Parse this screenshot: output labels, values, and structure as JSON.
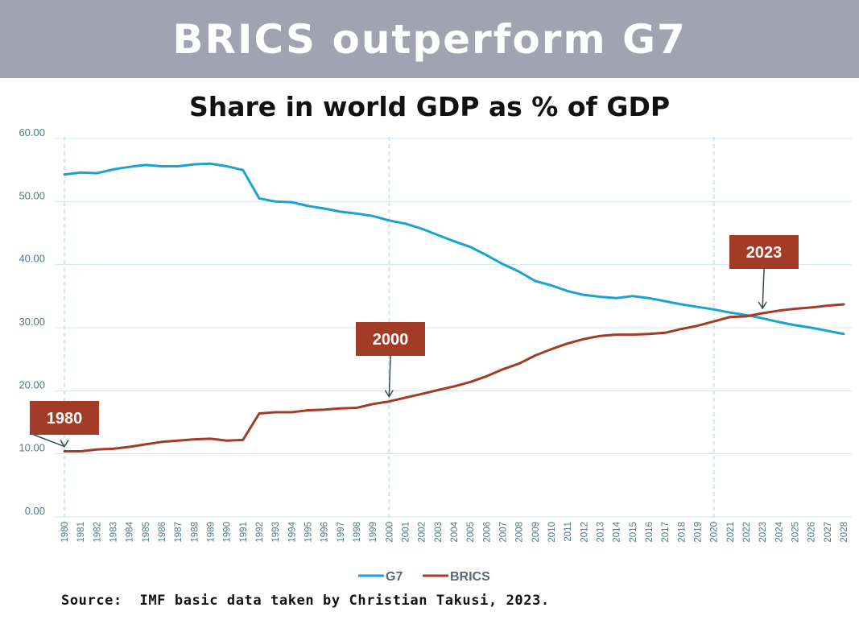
{
  "header": {
    "title": "BRICS outperform G7"
  },
  "chart_title": "Share in world GDP as % of GDP",
  "source": "Source:  IMF basic data taken by Christian Takusi, 2023.",
  "colors": {
    "banner": "#a1a4b0",
    "g7": "#1ba3cf",
    "brics": "#a33c26",
    "grid": "#cfe6ee",
    "tick": "#4a7c88",
    "callout": "#a33c26"
  },
  "chart_data": {
    "type": "line",
    "title": "Share in world GDP as % of GDP",
    "x": [
      "1980",
      "1981",
      "1982",
      "1983",
      "1984",
      "1985",
      "1986",
      "1987",
      "1988",
      "1989",
      "1990",
      "1991",
      "1992",
      "1993",
      "1994",
      "1995",
      "1996",
      "1997",
      "1998",
      "1999",
      "2000",
      "2001",
      "2002",
      "2003",
      "2004",
      "2005",
      "2006",
      "2007",
      "2008",
      "2009",
      "2010",
      "2011",
      "2012",
      "2013",
      "2014",
      "2015",
      "2016",
      "2017",
      "2018",
      "2019",
      "2020",
      "2021",
      "2022",
      "2023",
      "2024",
      "2025",
      "2026",
      "2027",
      "2028"
    ],
    "ylim": [
      0,
      60
    ],
    "yticks": [
      "0.00",
      "10.00",
      "20.00",
      "30.00",
      "40.00",
      "50.00",
      "60.00"
    ],
    "grid": true,
    "legend_position": "bottom-center",
    "series": [
      {
        "name": "G7",
        "values": [
          54.3,
          54.6,
          54.5,
          55.1,
          55.5,
          55.8,
          55.6,
          55.6,
          55.9,
          56.0,
          55.6,
          55.0,
          50.5,
          50.0,
          49.9,
          49.3,
          48.9,
          48.4,
          48.1,
          47.7,
          47.0,
          46.5,
          45.7,
          44.7,
          43.7,
          42.8,
          41.5,
          40.1,
          38.9,
          37.4,
          36.7,
          35.8,
          35.2,
          34.9,
          34.7,
          35.0,
          34.7,
          34.2,
          33.7,
          33.3,
          32.9,
          32.4,
          32.0,
          31.5,
          30.9,
          30.4,
          30.0,
          29.5,
          29.0
        ]
      },
      {
        "name": "BRICS",
        "values": [
          10.4,
          10.4,
          10.7,
          10.8,
          11.1,
          11.5,
          11.9,
          12.1,
          12.3,
          12.4,
          12.1,
          12.2,
          16.4,
          16.6,
          16.6,
          16.9,
          17.0,
          17.2,
          17.3,
          17.9,
          18.3,
          18.9,
          19.5,
          20.1,
          20.7,
          21.4,
          22.3,
          23.4,
          24.3,
          25.6,
          26.6,
          27.5,
          28.2,
          28.7,
          28.9,
          28.9,
          29.0,
          29.2,
          29.8,
          30.3,
          31.0,
          31.7,
          31.8,
          32.3,
          32.7,
          33.0,
          33.2,
          33.5,
          33.7
        ]
      }
    ],
    "annotations": [
      {
        "label": "1980",
        "x": "1980",
        "series": "BRICS"
      },
      {
        "label": "2000",
        "x": "2000",
        "series": "BRICS"
      },
      {
        "label": "2023",
        "x": "2023",
        "series": "BRICS"
      }
    ],
    "highlight_years": [
      "1980",
      "2000",
      "2020"
    ]
  }
}
